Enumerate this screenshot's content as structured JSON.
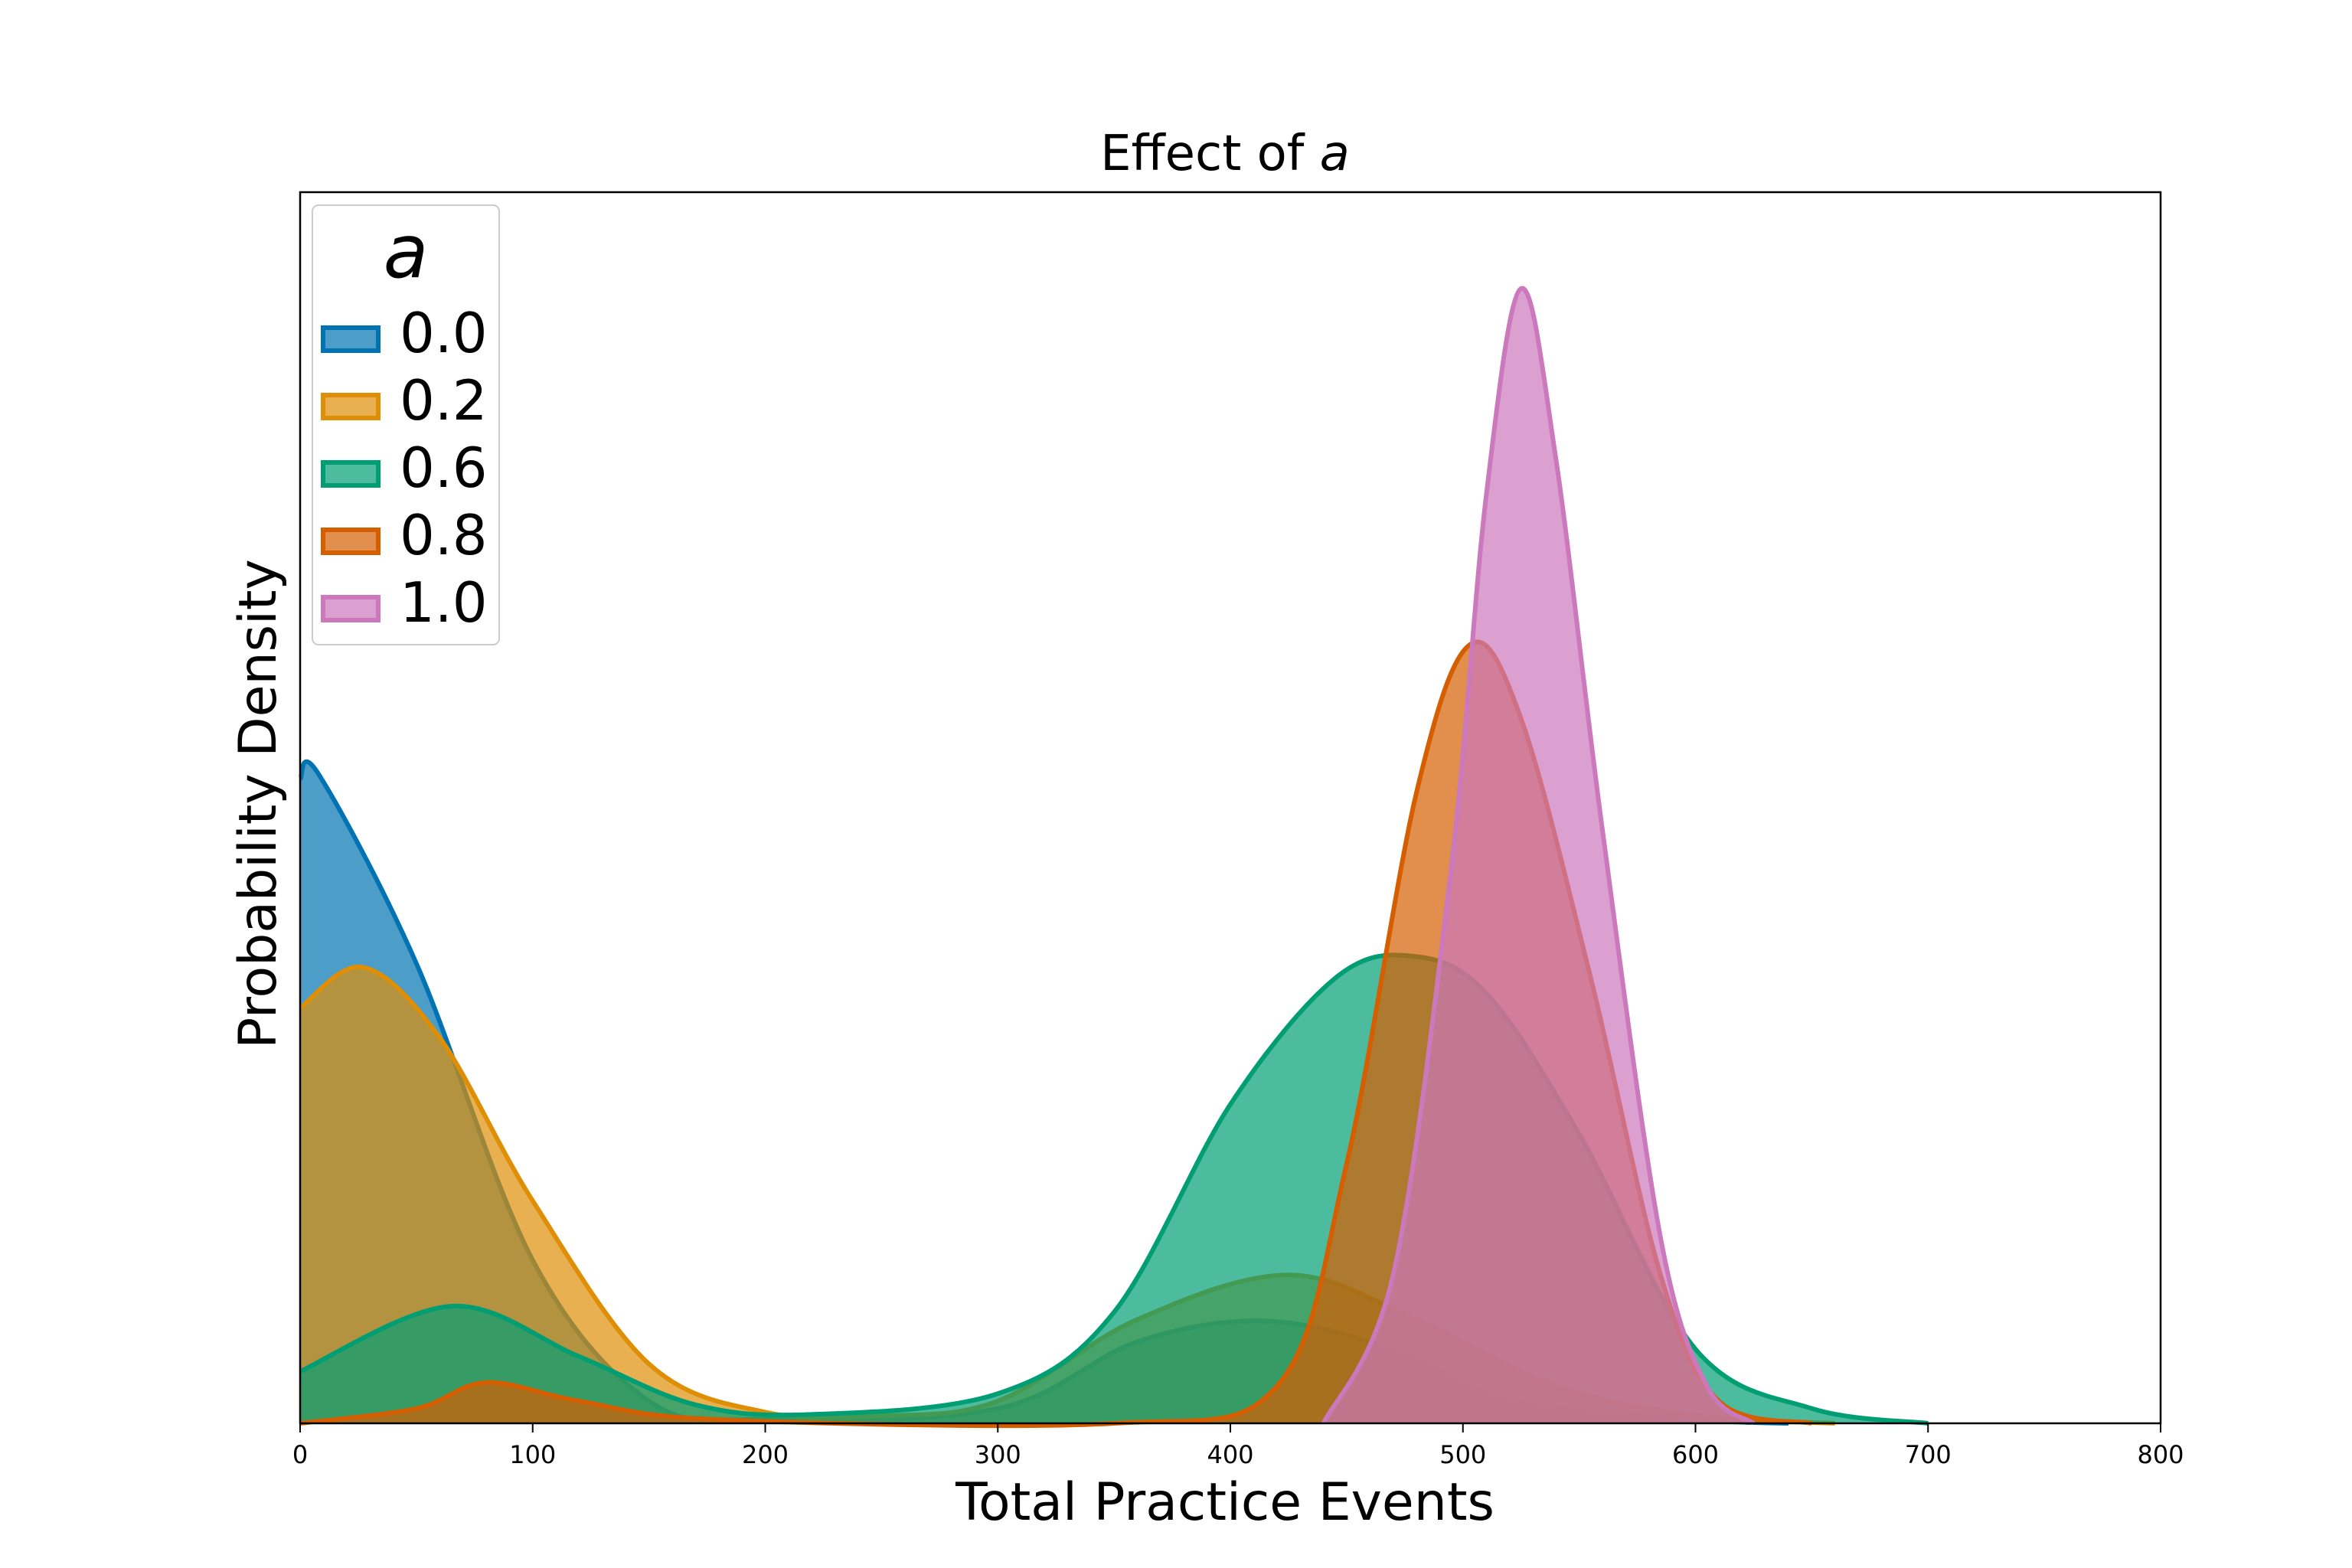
{
  "chart_data": {
    "type": "area",
    "title": "Effect of",
    "title_symbol": "a",
    "xlabel": "Total Practice Events",
    "ylabel": "Probability Density",
    "xlim": [
      0,
      800
    ],
    "x_ticks": [
      "0",
      "100",
      "200",
      "300",
      "400",
      "500",
      "600",
      "700",
      "800"
    ],
    "y_ticks_shown": false,
    "grid": false,
    "legend": {
      "title": "a",
      "position": "top-left"
    },
    "series": [
      {
        "name": "0.0",
        "color": "#0173b2",
        "components": [
          {
            "w": 1.0,
            "mu": 5,
            "sd": 55
          },
          {
            "w": 0.39,
            "mu": 415,
            "sd": 50
          }
        ],
        "tail": [
          {
            "x": 0,
            "y": 0.869
          },
          {
            "x": 8,
            "y": 0.875
          },
          {
            "x": 50,
            "y": 0.62
          },
          {
            "x": 100,
            "y": 0.22
          },
          {
            "x": 150,
            "y": 0.03
          },
          {
            "x": 200,
            "y": 0.005
          },
          {
            "x": 300,
            "y": 0.02
          },
          {
            "x": 360,
            "y": 0.11
          },
          {
            "x": 415,
            "y": 0.138
          },
          {
            "x": 470,
            "y": 0.1
          },
          {
            "x": 520,
            "y": 0.03
          },
          {
            "x": 600,
            "y": 0.005
          },
          {
            "x": 640,
            "y": 0.0
          }
        ]
      },
      {
        "name": "0.2",
        "color": "#de8f05",
        "points": [
          {
            "x": 0,
            "y": 0.56
          },
          {
            "x": 27,
            "y": 0.615
          },
          {
            "x": 60,
            "y": 0.52
          },
          {
            "x": 100,
            "y": 0.3
          },
          {
            "x": 150,
            "y": 0.08
          },
          {
            "x": 200,
            "y": 0.015
          },
          {
            "x": 250,
            "y": 0.01
          },
          {
            "x": 300,
            "y": 0.03
          },
          {
            "x": 360,
            "y": 0.14
          },
          {
            "x": 425,
            "y": 0.2
          },
          {
            "x": 480,
            "y": 0.14
          },
          {
            "x": 540,
            "y": 0.05
          },
          {
            "x": 600,
            "y": 0.01
          },
          {
            "x": 660,
            "y": 0.0
          }
        ]
      },
      {
        "name": "0.6",
        "color": "#029e73",
        "points": [
          {
            "x": 0,
            "y": 0.07
          },
          {
            "x": 65,
            "y": 0.158
          },
          {
            "x": 120,
            "y": 0.09
          },
          {
            "x": 170,
            "y": 0.025
          },
          {
            "x": 220,
            "y": 0.012
          },
          {
            "x": 300,
            "y": 0.04
          },
          {
            "x": 350,
            "y": 0.15
          },
          {
            "x": 400,
            "y": 0.43
          },
          {
            "x": 445,
            "y": 0.6
          },
          {
            "x": 478,
            "y": 0.63
          },
          {
            "x": 510,
            "y": 0.58
          },
          {
            "x": 550,
            "y": 0.39
          },
          {
            "x": 600,
            "y": 0.1
          },
          {
            "x": 650,
            "y": 0.02
          },
          {
            "x": 700,
            "y": 0.0
          }
        ]
      },
      {
        "name": "0.8",
        "color": "#d55e00",
        "points": [
          {
            "x": 0,
            "y": 0.0
          },
          {
            "x": 50,
            "y": 0.02
          },
          {
            "x": 80,
            "y": 0.055
          },
          {
            "x": 120,
            "y": 0.03
          },
          {
            "x": 180,
            "y": 0.005
          },
          {
            "x": 350,
            "y": 0.0
          },
          {
            "x": 420,
            "y": 0.05
          },
          {
            "x": 450,
            "y": 0.35
          },
          {
            "x": 480,
            "y": 0.85
          },
          {
            "x": 503,
            "y": 1.05
          },
          {
            "x": 525,
            "y": 0.95
          },
          {
            "x": 555,
            "y": 0.6
          },
          {
            "x": 585,
            "y": 0.2
          },
          {
            "x": 610,
            "y": 0.03
          },
          {
            "x": 650,
            "y": 0.0
          }
        ]
      },
      {
        "name": "1.0",
        "color": "#cc78bc",
        "points": [
          {
            "x": 440,
            "y": 0.0
          },
          {
            "x": 470,
            "y": 0.2
          },
          {
            "x": 495,
            "y": 0.75
          },
          {
            "x": 510,
            "y": 1.25
          },
          {
            "x": 525,
            "y": 1.53
          },
          {
            "x": 540,
            "y": 1.3
          },
          {
            "x": 560,
            "y": 0.8
          },
          {
            "x": 585,
            "y": 0.25
          },
          {
            "x": 605,
            "y": 0.05
          },
          {
            "x": 625,
            "y": 0.0
          }
        ]
      }
    ]
  }
}
